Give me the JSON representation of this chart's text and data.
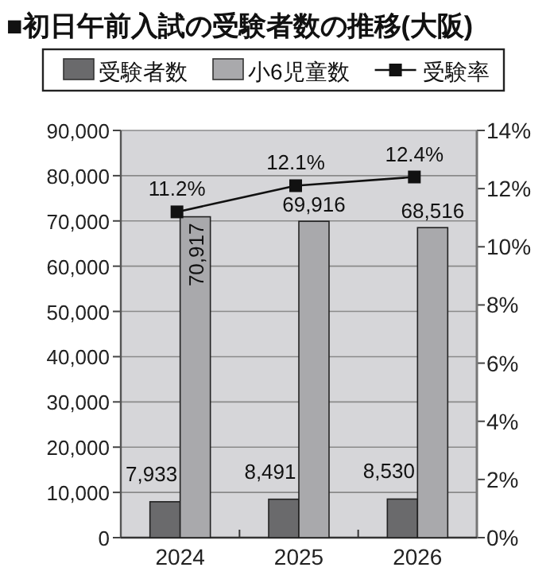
{
  "chart_data": {
    "type": "bar",
    "title": "■初日午前入試の受験者数の推移(大阪)",
    "categories": [
      "2024",
      "2025",
      "2026"
    ],
    "series": [
      {
        "name": "受験者数",
        "color": "#6a6a6c",
        "values": [
          7933,
          8491,
          8530
        ],
        "value_labels": [
          "7,933",
          "8,491",
          "8,530"
        ]
      },
      {
        "name": "小6児童数",
        "color": "#a9a9ac",
        "values": [
          70917,
          69916,
          68516
        ],
        "value_labels": [
          "70,917",
          "69,916",
          "68,516"
        ]
      },
      {
        "name": "受験率",
        "type": "line",
        "axis": "y2",
        "color": "#111111",
        "marker": "square",
        "values": [
          11.2,
          12.1,
          12.4
        ],
        "value_labels": [
          "11.2%",
          "12.1%",
          "12.4%"
        ]
      }
    ],
    "ylim": [
      0,
      90000
    ],
    "yticks": [
      {
        "value": 0,
        "label": "0"
      },
      {
        "value": 10000,
        "label": "10,000"
      },
      {
        "value": 20000,
        "label": "20,000"
      },
      {
        "value": 30000,
        "label": "30,000"
      },
      {
        "value": 40000,
        "label": "40,000"
      },
      {
        "value": 50000,
        "label": "50,000"
      },
      {
        "value": 60000,
        "label": "60,000"
      },
      {
        "value": 70000,
        "label": "70,000"
      },
      {
        "value": 80000,
        "label": "80,000"
      },
      {
        "value": 90000,
        "label": "90,000"
      }
    ],
    "y2lim": [
      0,
      14
    ],
    "y2ticks": [
      {
        "value": 0,
        "label": "0%"
      },
      {
        "value": 2,
        "label": "2%"
      },
      {
        "value": 4,
        "label": "4%"
      },
      {
        "value": 6,
        "label": "6%"
      },
      {
        "value": 8,
        "label": "8%"
      },
      {
        "value": 10,
        "label": "10%"
      },
      {
        "value": 12,
        "label": "12%"
      },
      {
        "value": 14,
        "label": "14%"
      }
    ],
    "grid": "y",
    "legend": "top"
  }
}
